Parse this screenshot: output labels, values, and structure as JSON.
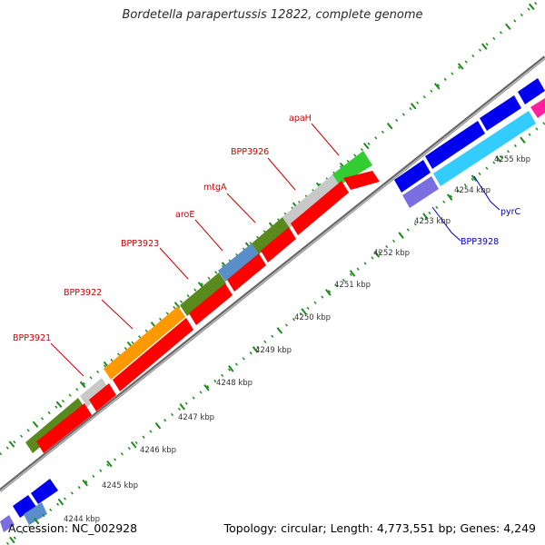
{
  "title": "Bordetella parapertussis 12822, complete genome",
  "footer": {
    "accession": "Accession: NC_002928",
    "summary": "Topology: circular; Length: 4,773,551 bp; Genes: 4,249"
  },
  "colors": {
    "backbone": "#888888",
    "tick": "#1e8a1e",
    "forward_label": "#cc0000",
    "reverse_label": "#0000cc",
    "kbp_label": "#333333",
    "orange": "#ff9900",
    "olive": "#5a8a1e",
    "grey": "#c8c8c8",
    "steelblue": "#5a8ec8",
    "green": "#33cc33",
    "red": "#ff0000",
    "blue": "#0000ee",
    "cyan": "#33ccff",
    "slateblue": "#7a6ee0",
    "magenta": "#ff1f9f"
  },
  "kbp_labels": [
    "4245 kbp",
    "4246 kbp",
    "4247 kbp",
    "4248 kbp",
    "4249 kbp",
    "4250 kbp",
    "4251 kbp",
    "4252 kbp",
    "4253 kbp",
    "4254 kbp",
    "4255 kbp",
    "4244 kbp"
  ],
  "gene_labels": {
    "forward": [
      "BPP3921",
      "BPP3922",
      "BPP3923",
      "aroE",
      "mtgA",
      "BPP3926",
      "apaH"
    ],
    "reverse": [
      "BPP3928",
      "pyrC"
    ]
  }
}
